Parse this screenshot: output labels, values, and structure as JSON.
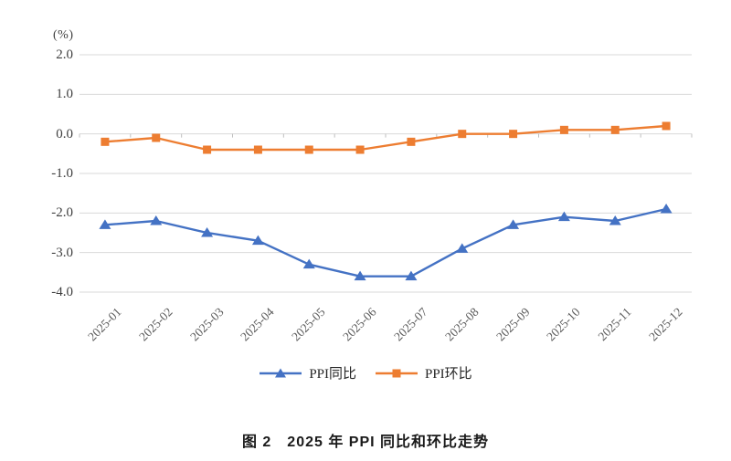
{
  "figure": {
    "unit_label": "(%)",
    "caption": "图 2　2025 年 PPI 同比和环比走势"
  },
  "chart_data": {
    "type": "line",
    "title": "2025 年 PPI 同比和环比走势",
    "categories": [
      "2025-01",
      "2025-02",
      "2025-03",
      "2025-04",
      "2025-05",
      "2025-06",
      "2025-07",
      "2025-08",
      "2025-09",
      "2025-10",
      "2025-11",
      "2025-12"
    ],
    "series": [
      {
        "name": "PPI同比",
        "marker": "triangle",
        "color": "#4472c4",
        "values": [
          -2.3,
          -2.2,
          -2.5,
          -2.7,
          -3.3,
          -3.6,
          -3.6,
          -2.9,
          -2.3,
          -2.1,
          -2.2,
          -1.9
        ]
      },
      {
        "name": "PPI环比",
        "marker": "square",
        "color": "#ed7d31",
        "values": [
          -0.2,
          -0.1,
          -0.4,
          -0.4,
          -0.4,
          -0.4,
          -0.2,
          0.0,
          0.0,
          0.1,
          0.1,
          0.2
        ]
      }
    ],
    "xlabel": "",
    "ylabel": "(%)",
    "ylim": [
      -4.0,
      2.0
    ],
    "yticks": [
      "2.0",
      "1.0",
      "0.0",
      "-1.0",
      "-2.0",
      "-3.0",
      "-4.0"
    ],
    "grid": true,
    "legend_position": "bottom"
  },
  "colors": {
    "grid": "#d9d9d9",
    "axis_tick": "#bfbfbf",
    "y_tick_label": "#3f3f3f",
    "x_tick_label": "#595959"
  }
}
